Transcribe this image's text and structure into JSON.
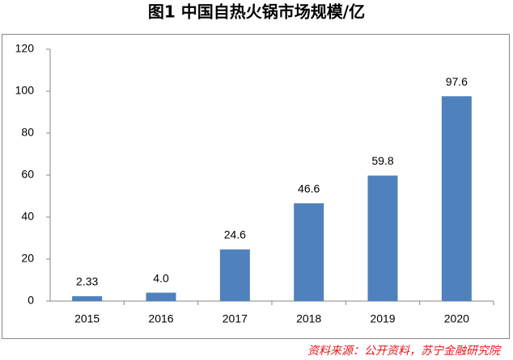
{
  "chart_data": {
    "type": "bar",
    "title": "图1  中国自热火锅市场规模/亿",
    "categories": [
      "2015",
      "2016",
      "2017",
      "2018",
      "2019",
      "2020"
    ],
    "values": [
      2.33,
      4,
      24.6,
      46.6,
      59.8,
      97.6
    ],
    "value_labels": [
      "2.33",
      "4.0",
      "24.6",
      "46.6",
      "59.8",
      "97.6"
    ],
    "color": "#4f81bd",
    "ylim": [
      0,
      120
    ],
    "yticks": [
      0,
      20,
      40,
      60,
      80,
      100,
      120
    ],
    "grid": false,
    "source": "资料来源：公开资料，苏宁金融研究院"
  }
}
